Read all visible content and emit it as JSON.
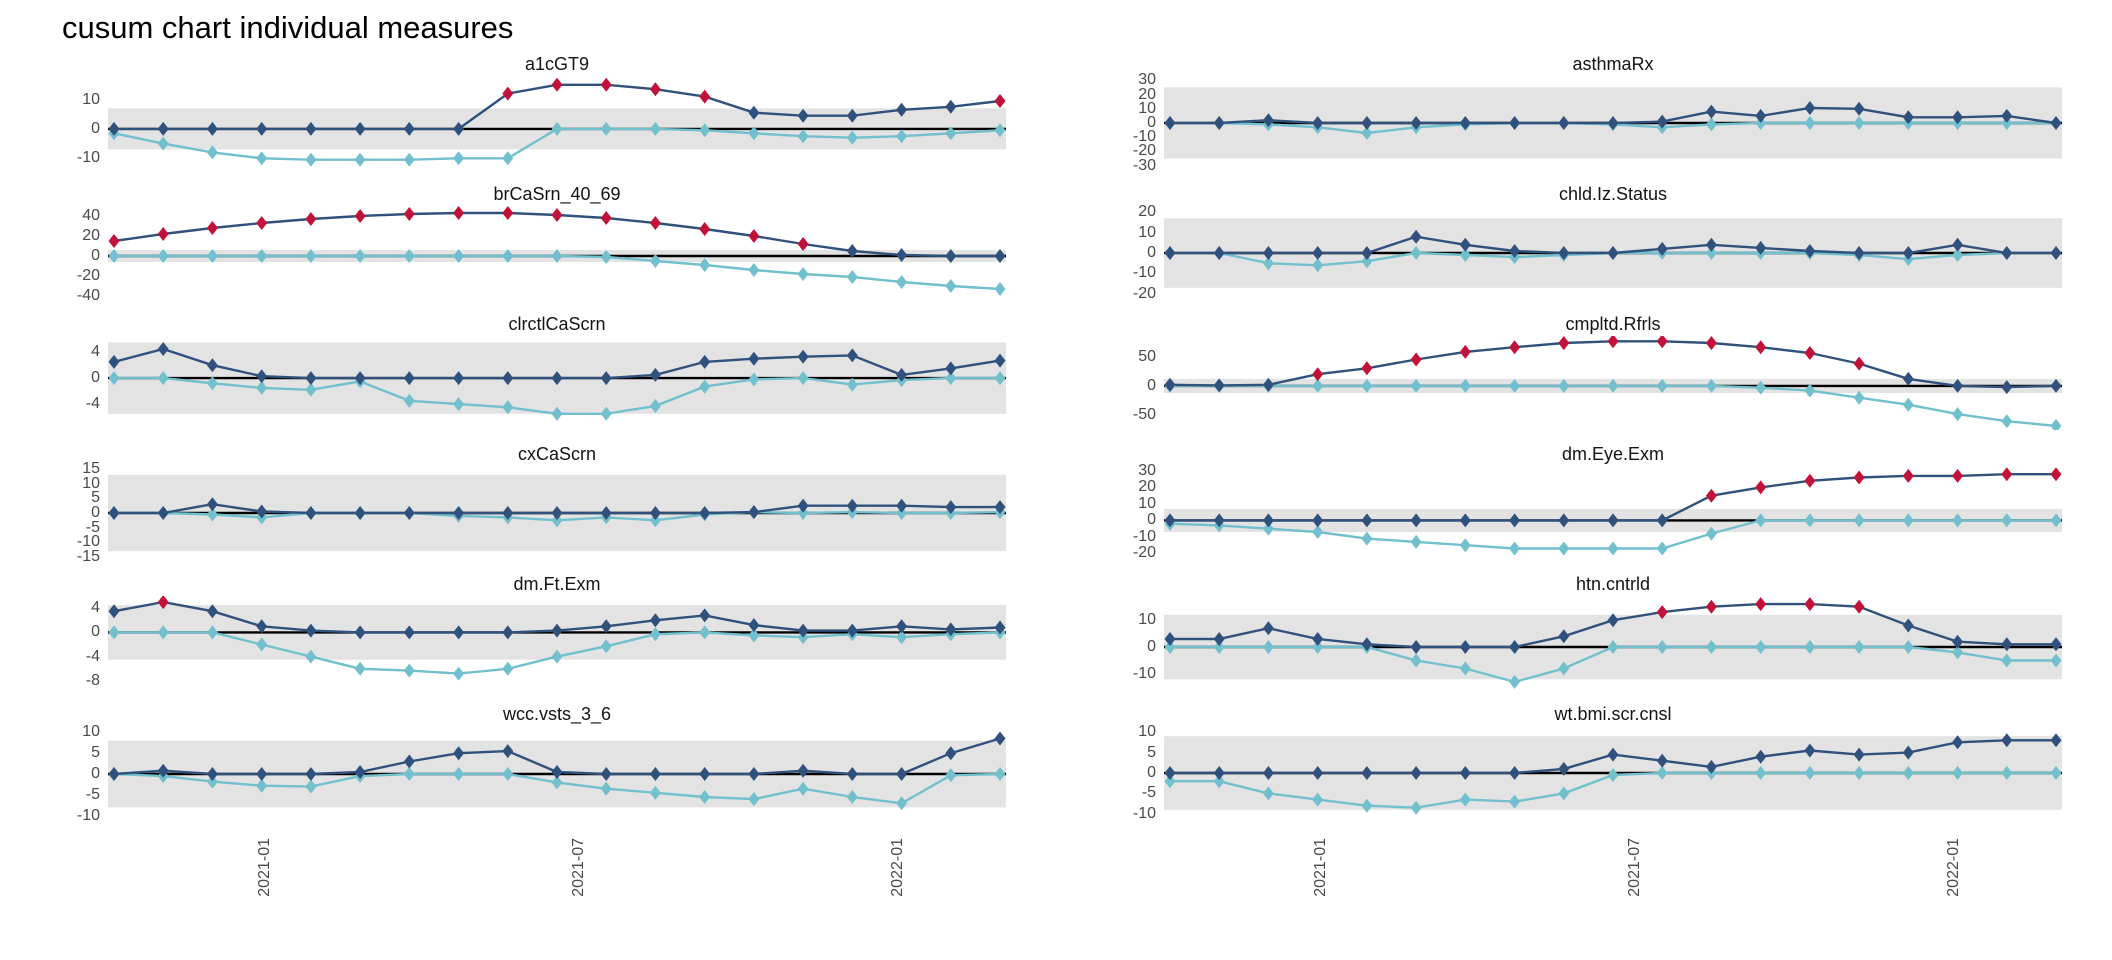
{
  "title": "cusum chart  individual measures",
  "colors": {
    "navy": "#31517d",
    "cyan": "#72c0cd",
    "red": "#c3123a",
    "band": "#e3e3e3",
    "zero_line": "#000000",
    "axis_text": "#4a4a4a"
  },
  "x_axis": {
    "labels": [
      "2021-01",
      "2021-07",
      "2022-01"
    ],
    "positions": [
      0.175,
      0.525,
      0.88
    ]
  },
  "chart_data": [
    {
      "type": "line",
      "title": "a1cGT9",
      "column": "left",
      "yticks": [
        10,
        0,
        -10
      ],
      "ylim": [
        -14,
        18
      ],
      "band": [
        -7,
        7
      ],
      "grid": false,
      "series": [
        {
          "name": "cusum upper",
          "color_key": "navy",
          "values": [
            0,
            0,
            0,
            0,
            0,
            0,
            0,
            0,
            12,
            15,
            15,
            13.5,
            11,
            5.5,
            4.5,
            4.5,
            6.5,
            7.5,
            9.5
          ],
          "signal_indices": [
            8,
            9,
            10,
            11,
            12,
            18
          ]
        },
        {
          "name": "cusum lower",
          "color_key": "cyan",
          "values": [
            -1.5,
            -5,
            -8,
            -10,
            -10.5,
            -10.5,
            -10.5,
            -10,
            -10,
            0,
            0,
            0,
            -0.5,
            -1.5,
            -2.5,
            -3,
            -2.5,
            -1.5,
            -0.5
          ],
          "signal_indices": []
        }
      ]
    },
    {
      "type": "line",
      "title": "brCaSrn_40_69",
      "column": "left",
      "yticks": [
        40,
        20,
        0,
        -20,
        -40
      ],
      "ylim": [
        -44,
        50
      ],
      "band": [
        -6,
        6
      ],
      "grid": false,
      "series": [
        {
          "name": "cusum upper",
          "color_key": "navy",
          "values": [
            15,
            22,
            28,
            33,
            37,
            40,
            42,
            43,
            43,
            41,
            38,
            33,
            27,
            20,
            12,
            5,
            1,
            0,
            0
          ],
          "signal_indices": [
            0,
            1,
            2,
            3,
            4,
            5,
            6,
            7,
            8,
            9,
            10,
            11,
            12,
            13,
            14
          ]
        },
        {
          "name": "cusum lower",
          "color_key": "cyan",
          "values": [
            0,
            0,
            0,
            0,
            0,
            0,
            0,
            0,
            0,
            0,
            -1,
            -5,
            -9,
            -14,
            -18,
            -21,
            -26,
            -30,
            -33
          ],
          "signal_indices": []
        }
      ]
    },
    {
      "type": "line",
      "title": "clrctlCaScrn",
      "column": "left",
      "yticks": [
        4,
        0,
        -4
      ],
      "ylim": [
        -8,
        6.5
      ],
      "band": [
        -5.5,
        5.5
      ],
      "grid": false,
      "series": [
        {
          "name": "cusum upper",
          "color_key": "navy",
          "values": [
            2.5,
            4.5,
            2,
            0.3,
            0,
            0,
            0,
            0,
            0,
            0,
            0,
            0.5,
            2.5,
            3,
            3.3,
            3.5,
            0.5,
            1.5,
            2.7
          ],
          "signal_indices": []
        },
        {
          "name": "cusum lower",
          "color_key": "cyan",
          "values": [
            0,
            0,
            -0.8,
            -1.5,
            -1.8,
            -0.5,
            -3.5,
            -4,
            -4.5,
            -5.5,
            -5.5,
            -4.3,
            -1.3,
            -0.2,
            0,
            -1,
            -0.3,
            0,
            0
          ],
          "signal_indices": []
        }
      ]
    },
    {
      "type": "line",
      "title": "cxCaScrn",
      "column": "left",
      "yticks": [
        15,
        10,
        5,
        0,
        -5,
        -10,
        -15
      ],
      "ylim": [
        -16,
        16
      ],
      "band": [
        -13,
        13
      ],
      "grid": false,
      "series": [
        {
          "name": "cusum upper",
          "color_key": "navy",
          "values": [
            0,
            0,
            3,
            0.5,
            0,
            0,
            0,
            0,
            0,
            0,
            0,
            0,
            0,
            0.3,
            2.5,
            2.5,
            2.5,
            2,
            2
          ],
          "signal_indices": []
        },
        {
          "name": "cusum lower",
          "color_key": "cyan",
          "values": [
            0,
            0,
            -0.5,
            -1.5,
            0,
            0,
            0,
            -1,
            -1.5,
            -2.5,
            -1.5,
            -2.5,
            -0.5,
            0.3,
            0,
            0.3,
            0,
            0,
            0.3
          ],
          "signal_indices": []
        }
      ]
    },
    {
      "type": "line",
      "title": "dm.Ft.Exm",
      "column": "left",
      "yticks": [
        4,
        0,
        -4,
        -8
      ],
      "ylim": [
        -9.5,
        6
      ],
      "band": [
        -4.5,
        4.5
      ],
      "grid": false,
      "series": [
        {
          "name": "cusum upper",
          "color_key": "navy",
          "values": [
            3.5,
            5,
            3.5,
            1,
            0.3,
            0,
            0,
            0,
            0,
            0.3,
            1,
            2,
            2.8,
            1.2,
            0.3,
            0.3,
            1,
            0.5,
            0.8
          ],
          "signal_indices": [
            1
          ]
        },
        {
          "name": "cusum lower",
          "color_key": "cyan",
          "values": [
            0,
            0,
            0,
            -2,
            -4,
            -6,
            -6.3,
            -6.8,
            -6,
            -4,
            -2.3,
            -0.3,
            0,
            -0.5,
            -0.8,
            -0.3,
            -0.8,
            -0.3,
            0
          ],
          "signal_indices": []
        }
      ]
    },
    {
      "type": "line",
      "title": "wcc.vsts_3_6",
      "column": "left",
      "yticks": [
        10,
        5,
        0,
        -5,
        -10
      ],
      "ylim": [
        -11,
        11.5
      ],
      "band": [
        -8,
        8
      ],
      "grid": false,
      "series": [
        {
          "name": "cusum upper",
          "color_key": "navy",
          "values": [
            0,
            0.8,
            0,
            0,
            0,
            0.5,
            3,
            5,
            5.5,
            0.5,
            0,
            0,
            0,
            0,
            0.8,
            0,
            0,
            5,
            8.5
          ],
          "signal_indices": []
        },
        {
          "name": "cusum lower",
          "color_key": "cyan",
          "values": [
            0,
            -0.5,
            -1.8,
            -2.8,
            -3,
            -0.5,
            0,
            0,
            0,
            -2,
            -3.5,
            -4.5,
            -5.5,
            -6,
            -3.5,
            -5.5,
            -7,
            -0.3,
            0
          ],
          "signal_indices": []
        }
      ]
    },
    {
      "type": "line",
      "title": "asthmaRx",
      "column": "right",
      "yticks": [
        30,
        20,
        10,
        0,
        -10,
        -20,
        -30
      ],
      "ylim": [
        -33,
        33
      ],
      "band": [
        -25,
        25
      ],
      "grid": false,
      "series": [
        {
          "name": "cusum upper",
          "color_key": "navy",
          "values": [
            0,
            0,
            2,
            0,
            0,
            0,
            0,
            0,
            0,
            0,
            1,
            8,
            5,
            10.5,
            10,
            4,
            4,
            5,
            0
          ],
          "signal_indices": []
        },
        {
          "name": "cusum lower",
          "color_key": "cyan",
          "values": [
            0,
            0,
            -1,
            -3,
            -7,
            -3,
            -1,
            0,
            0,
            -1,
            -3,
            -1,
            0,
            0,
            0,
            0,
            0,
            0,
            0
          ],
          "signal_indices": []
        }
      ]
    },
    {
      "type": "line",
      "title": "chld.Iz.Status",
      "column": "right",
      "yticks": [
        20,
        10,
        0,
        -10,
        -20
      ],
      "ylim": [
        -23,
        23
      ],
      "band": [
        -17,
        17
      ],
      "grid": false,
      "series": [
        {
          "name": "cusum upper",
          "color_key": "navy",
          "values": [
            0,
            0,
            0,
            0,
            0,
            8,
            4,
            1,
            0,
            0,
            2,
            4,
            2.5,
            1,
            0,
            0,
            4,
            0,
            0
          ],
          "signal_indices": []
        },
        {
          "name": "cusum lower",
          "color_key": "cyan",
          "values": [
            0,
            0,
            -5,
            -6,
            -4,
            0,
            -1,
            -2,
            -1,
            0,
            0,
            0,
            0,
            0,
            -1,
            -3,
            -1,
            0,
            0
          ],
          "signal_indices": []
        }
      ]
    },
    {
      "type": "line",
      "title": "cmpltd.Rfrls",
      "column": "right",
      "yticks": [
        50,
        0,
        -50
      ],
      "ylim": [
        -75,
        85
      ],
      "band": [
        -12,
        12
      ],
      "grid": false,
      "series": [
        {
          "name": "cusum upper",
          "color_key": "navy",
          "values": [
            2,
            1,
            2,
            20,
            30,
            45,
            58,
            66,
            73,
            76,
            76,
            73,
            66,
            56,
            38,
            12,
            0,
            -2,
            0
          ],
          "signal_indices": [
            3,
            4,
            5,
            6,
            7,
            8,
            9,
            10,
            11,
            12,
            13,
            14
          ]
        },
        {
          "name": "cusum lower",
          "color_key": "cyan",
          "values": [
            0,
            0,
            0,
            0,
            0,
            0,
            0,
            0,
            0,
            0,
            0,
            0,
            -3,
            -8,
            -20,
            -32,
            -48,
            -60,
            -68
          ],
          "signal_indices": []
        }
      ]
    },
    {
      "type": "line",
      "title": "dm.Eye.Exm",
      "column": "right",
      "yticks": [
        30,
        20,
        10,
        0,
        -10,
        -20
      ],
      "ylim": [
        -24,
        33
      ],
      "band": [
        -7,
        7
      ],
      "grid": false,
      "series": [
        {
          "name": "cusum upper",
          "color_key": "navy",
          "values": [
            0,
            0,
            0,
            0,
            0,
            0,
            0,
            0,
            0,
            0,
            0,
            15,
            20,
            24,
            26,
            27,
            27,
            28,
            28
          ],
          "signal_indices": [
            11,
            12,
            13,
            14,
            15,
            16,
            17,
            18
          ]
        },
        {
          "name": "cusum lower",
          "color_key": "cyan",
          "values": [
            -2,
            -3,
            -5,
            -7,
            -11,
            -13,
            -15,
            -17,
            -17,
            -17,
            -17,
            -8,
            0,
            0,
            0,
            0,
            0,
            0,
            0
          ],
          "signal_indices": []
        }
      ]
    },
    {
      "type": "line",
      "title": "htn.cntrld",
      "column": "right",
      "yticks": [
        10,
        0,
        -10
      ],
      "ylim": [
        -16,
        19
      ],
      "band": [
        -12,
        12
      ],
      "grid": false,
      "series": [
        {
          "name": "cusum upper",
          "color_key": "navy",
          "values": [
            3,
            3,
            7,
            3,
            1,
            0,
            0,
            0,
            4,
            10,
            13,
            15,
            16,
            16,
            15,
            8,
            2,
            1,
            1
          ],
          "signal_indices": [
            10,
            11,
            12,
            13,
            14
          ]
        },
        {
          "name": "cusum lower",
          "color_key": "cyan",
          "values": [
            0,
            0,
            0,
            0,
            0,
            -5,
            -8,
            -13,
            -8,
            0,
            0,
            0,
            0,
            0,
            0,
            0,
            -2,
            -5,
            -5
          ],
          "signal_indices": []
        }
      ]
    },
    {
      "type": "line",
      "title": "wt.bmi.scr.cnsl",
      "column": "right",
      "yticks": [
        10,
        5,
        0,
        -5,
        -10
      ],
      "ylim": [
        -11.5,
        11.5
      ],
      "band": [
        -9,
        9
      ],
      "grid": false,
      "series": [
        {
          "name": "cusum upper",
          "color_key": "navy",
          "values": [
            0,
            0,
            0,
            0,
            0,
            0,
            0,
            0,
            1,
            4.5,
            3,
            1.5,
            4,
            5.5,
            4.5,
            5,
            7.5,
            8,
            8
          ],
          "signal_indices": []
        },
        {
          "name": "cusum lower",
          "color_key": "cyan",
          "values": [
            -2,
            -2,
            -5,
            -6.5,
            -8,
            -8.5,
            -6.5,
            -7,
            -5,
            -0.5,
            0,
            0,
            0,
            0,
            0,
            0,
            0,
            0,
            0
          ],
          "signal_indices": []
        }
      ]
    }
  ]
}
